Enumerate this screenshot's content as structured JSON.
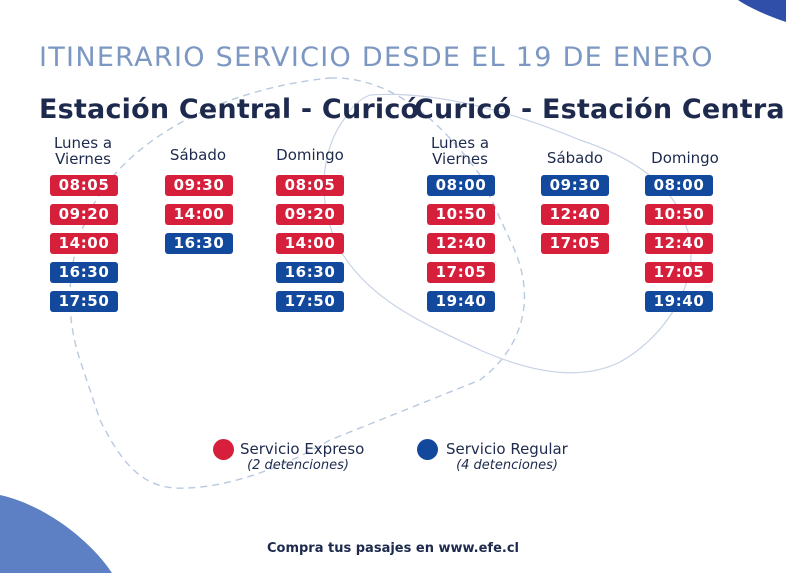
{
  "title": "ITINERARIO SERVICIO DESDE EL 19 DE ENERO",
  "colors": {
    "expreso": "#d61f3b",
    "regular": "#13499c",
    "title": "#7b97c2",
    "text": "#1d2a4d",
    "corner": "#5d7fc4"
  },
  "routes": [
    {
      "name": "Estación Central - Curicó",
      "columns": [
        {
          "header": "Lunes a Viernes",
          "header_lines": [
            "Lunes a",
            "Viernes"
          ],
          "times": [
            {
              "time": "08:05",
              "type": "expreso"
            },
            {
              "time": "09:20",
              "type": "expreso"
            },
            {
              "time": "14:00",
              "type": "expreso"
            },
            {
              "time": "16:30",
              "type": "regular"
            },
            {
              "time": "17:50",
              "type": "regular"
            }
          ]
        },
        {
          "header": "Sábado",
          "header_lines": [
            "Sábado"
          ],
          "times": [
            {
              "time": "09:30",
              "type": "expreso"
            },
            {
              "time": "14:00",
              "type": "expreso"
            },
            {
              "time": "16:30",
              "type": "regular"
            }
          ]
        },
        {
          "header": "Domingo",
          "header_lines": [
            "Domingo"
          ],
          "times": [
            {
              "time": "08:05",
              "type": "expreso"
            },
            {
              "time": "09:20",
              "type": "expreso"
            },
            {
              "time": "14:00",
              "type": "expreso"
            },
            {
              "time": "16:30",
              "type": "regular"
            },
            {
              "time": "17:50",
              "type": "regular"
            }
          ]
        }
      ]
    },
    {
      "name": "Curicó - Estación Central",
      "columns": [
        {
          "header": "Lunes a Viernes",
          "header_lines": [
            "Lunes a",
            "Viernes"
          ],
          "times": [
            {
              "time": "08:00",
              "type": "regular"
            },
            {
              "time": "10:50",
              "type": "expreso"
            },
            {
              "time": "12:40",
              "type": "expreso"
            },
            {
              "time": "17:05",
              "type": "expreso"
            },
            {
              "time": "19:40",
              "type": "regular"
            }
          ]
        },
        {
          "header": "Sábado",
          "header_lines": [
            "Sábado"
          ],
          "times": [
            {
              "time": "09:30",
              "type": "regular"
            },
            {
              "time": "12:40",
              "type": "expreso"
            },
            {
              "time": "17:05",
              "type": "expreso"
            }
          ]
        },
        {
          "header": "Domingo",
          "header_lines": [
            "Domingo"
          ],
          "times": [
            {
              "time": "08:00",
              "type": "regular"
            },
            {
              "time": "10:50",
              "type": "expreso"
            },
            {
              "time": "12:40",
              "type": "expreso"
            },
            {
              "time": "17:05",
              "type": "expreso"
            },
            {
              "time": "19:40",
              "type": "regular"
            }
          ]
        }
      ]
    }
  ],
  "legend": [
    {
      "label": "Servicio Expreso",
      "sub": "(2 detenciones)",
      "type": "expreso"
    },
    {
      "label": "Servicio Regular",
      "sub": "(4 detenciones)",
      "type": "regular"
    }
  ],
  "footer": "Compra tus pasajes en www.efe.cl"
}
